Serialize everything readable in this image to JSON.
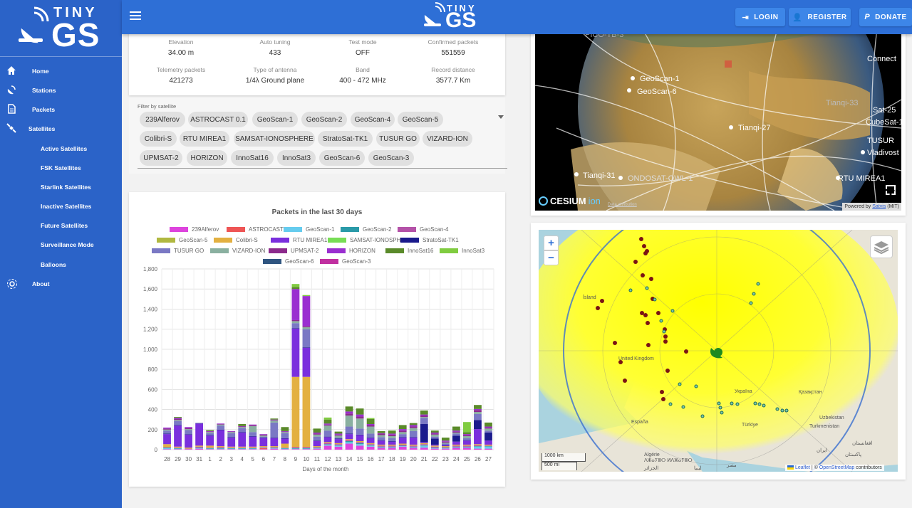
{
  "app": {
    "logo_small": "TINY",
    "logo_big": "GS"
  },
  "sidebar": {
    "items": [
      {
        "label": "Home",
        "type": "main"
      },
      {
        "label": "Stations",
        "type": "main"
      },
      {
        "label": "Packets",
        "type": "main"
      },
      {
        "label": "Satellites",
        "type": "sat"
      },
      {
        "label": "Active Satellites",
        "type": "sub"
      },
      {
        "label": "FSK Satellites",
        "type": "sub"
      },
      {
        "label": "Starlink Satellites",
        "type": "sub"
      },
      {
        "label": "Inactive Satellites",
        "type": "sub"
      },
      {
        "label": "Future Satellites",
        "type": "sub"
      },
      {
        "label": "Surveillance Mode",
        "type": "sub"
      },
      {
        "label": "Balloons",
        "type": "sub"
      },
      {
        "label": "About",
        "type": "main"
      }
    ]
  },
  "header": {
    "login": "LOGIN",
    "register": "REGISTER",
    "donate": "DONATE"
  },
  "stats": [
    {
      "key": "Elevation",
      "value": "34.00 m"
    },
    {
      "key": "Auto tuning",
      "value": "433"
    },
    {
      "key": "Test mode",
      "value": "OFF"
    },
    {
      "key": "Confirmed packets",
      "value": "551559"
    },
    {
      "key": "Telemetry packets",
      "value": "421273"
    },
    {
      "key": "Type of antenna",
      "value": "1/4λ Ground plane"
    },
    {
      "key": "Band",
      "value": "400 - 472 MHz"
    },
    {
      "key": "Record distance",
      "value": "3577.7 Km"
    }
  ],
  "filter": {
    "label": "Filter by satellite",
    "chips": [
      "239Alferov",
      "ASTROCAST 0.1",
      "GeoScan-1",
      "GeoScan-2",
      "GeoScan-4",
      "GeoScan-5",
      "Colibri-S",
      "RTU MIREA1",
      "SAMSAT-IONOSPHERE",
      "StratoSat-TK1",
      "TUSUR GO",
      "VIZARD-ION",
      "UPMSAT-2",
      "HORIZON",
      "InnoSat16",
      "InnoSat3",
      "GeoScan-6",
      "GeoScan-3"
    ]
  },
  "globe": {
    "labels": [
      "GeoScan-1",
      "GeoScan-6",
      "Tianqi-27",
      "Tianqi-31",
      "ONDOSAT-OWL-1",
      "TUSUR",
      "Vladivost",
      "RTU MIREA1",
      "Tianqi-33",
      "Sat-25",
      "CubeSat-1",
      "Connect",
      "PICO-TB-3"
    ],
    "logo": "CESIUM",
    "logo_ion": "ion",
    "data_attr": "Data attribution",
    "powered": "Powered by ",
    "satvis": "Satvis",
    "mit": " (MIT)"
  },
  "map": {
    "zoom_in": "+",
    "zoom_out": "−",
    "scale_km": "1000 km",
    "scale_mi": "500 mi",
    "leaflet": "Leaflet",
    "sep": " | © ",
    "osm": "OpenStreetMap",
    "contrib": " contributors",
    "places": [
      "United Kingdom",
      "España",
      "Algérie",
      "الجزائر",
      "ليبيا",
      "مصر",
      "Türkiye",
      "Қазақстан",
      "Turkmenistan",
      "Uzbekistan",
      "ایران",
      "پاکستان",
      "افغانستان",
      "Україна",
      "ⴷⵣⴰⵢⴻⵔ ⵍⴷⵣⴰⵢⴻⵔ",
      "Ísland"
    ]
  },
  "chart_data": {
    "type": "bar",
    "title": "Packets in the last 30 days",
    "xlabel": "Days of the month",
    "ylabel": "",
    "ylim": [
      0,
      1800
    ],
    "yticks": [
      0,
      200,
      400,
      600,
      800,
      1000,
      1200,
      1400,
      1600,
      1800
    ],
    "ytick_labels": [
      "0",
      "200",
      "400",
      "600",
      "800",
      "1,000",
      "1,200",
      "1,400",
      "1,600",
      "1,800"
    ],
    "stacked": true,
    "grid": true,
    "legend_position": "top",
    "categories": [
      "28",
      "29",
      "30",
      "31",
      "1",
      "2",
      "3",
      "4",
      "5",
      "6",
      "7",
      "8",
      "9",
      "10",
      "11",
      "12",
      "13",
      "14",
      "15",
      "16",
      "17",
      "18",
      "19",
      "20",
      "21",
      "22",
      "23",
      "24",
      "25",
      "26",
      "27"
    ],
    "series": [
      {
        "name": "239Alferov",
        "color": "#dd44dd",
        "values": [
          5,
          5,
          5,
          10,
          5,
          5,
          5,
          5,
          5,
          5,
          10,
          5,
          5,
          5,
          10,
          40,
          30,
          60,
          40,
          30,
          20,
          20,
          30,
          20,
          20,
          10,
          10,
          20,
          20,
          10,
          10
        ]
      },
      {
        "name": "ASTROCAST 0.1",
        "color": "#ee5555",
        "values": [
          0,
          0,
          0,
          0,
          0,
          0,
          0,
          0,
          0,
          10,
          0,
          0,
          0,
          0,
          0,
          0,
          0,
          0,
          0,
          0,
          0,
          0,
          0,
          0,
          0,
          0,
          0,
          0,
          0,
          0,
          0
        ]
      },
      {
        "name": "GeoScan-1",
        "color": "#66ccee",
        "values": [
          10,
          5,
          0,
          5,
          5,
          5,
          5,
          5,
          5,
          5,
          5,
          5,
          5,
          5,
          5,
          10,
          10,
          15,
          15,
          10,
          5,
          5,
          5,
          5,
          20,
          5,
          5,
          5,
          5,
          20,
          20
        ]
      },
      {
        "name": "GeoScan-2",
        "color": "#2a9aa8",
        "values": [
          5,
          5,
          0,
          5,
          5,
          5,
          5,
          5,
          5,
          0,
          5,
          5,
          5,
          5,
          5,
          5,
          5,
          10,
          10,
          5,
          5,
          5,
          5,
          5,
          5,
          5,
          5,
          5,
          5,
          5,
          5
        ]
      },
      {
        "name": "GeoScan-4",
        "color": "#b452a8",
        "values": [
          5,
          5,
          5,
          10,
          5,
          10,
          5,
          5,
          5,
          5,
          5,
          5,
          10,
          10,
          5,
          10,
          10,
          10,
          10,
          10,
          10,
          10,
          10,
          10,
          10,
          10,
          5,
          10,
          10,
          10,
          5
        ]
      },
      {
        "name": "GeoScan-5",
        "color": "#b0b840",
        "values": [
          0,
          0,
          0,
          0,
          0,
          0,
          0,
          0,
          0,
          0,
          0,
          0,
          0,
          0,
          0,
          0,
          0,
          0,
          0,
          0,
          0,
          0,
          0,
          0,
          0,
          0,
          0,
          0,
          0,
          0,
          0
        ]
      },
      {
        "name": "Colibri-S",
        "color": "#e3b041",
        "values": [
          30,
          10,
          10,
          10,
          20,
          10,
          10,
          10,
          10,
          10,
          10,
          40,
          700,
          700,
          10,
          10,
          10,
          10,
          10,
          10,
          10,
          10,
          10,
          10,
          10,
          10,
          10,
          10,
          10,
          10,
          10
        ]
      },
      {
        "name": "RTU MIREA1",
        "color": "#7a2fdd",
        "values": [
          100,
          210,
          130,
          220,
          100,
          160,
          90,
          140,
          100,
          80,
          80,
          50,
          480,
          290,
          50,
          50,
          40,
          50,
          60,
          50,
          40,
          30,
          60,
          70,
          10,
          10,
          10,
          30,
          40,
          150,
          40
        ]
      },
      {
        "name": "SAMSAT-IONOSPHERE",
        "color": "#77dd55",
        "values": [
          0,
          0,
          0,
          0,
          0,
          0,
          0,
          0,
          0,
          0,
          0,
          0,
          0,
          0,
          0,
          0,
          0,
          0,
          0,
          0,
          0,
          0,
          0,
          0,
          0,
          0,
          0,
          0,
          0,
          0,
          0
        ]
      },
      {
        "name": "StratoSat-TK1",
        "color": "#1a1a8c",
        "values": [
          5,
          5,
          5,
          5,
          5,
          5,
          5,
          5,
          5,
          5,
          5,
          5,
          5,
          5,
          5,
          5,
          5,
          5,
          5,
          5,
          5,
          5,
          5,
          5,
          180,
          60,
          5,
          60,
          5,
          90,
          80
        ]
      },
      {
        "name": "TUSUR GO",
        "color": "#7a78c4",
        "values": [
          30,
          40,
          40,
          0,
          20,
          40,
          40,
          40,
          40,
          10,
          150,
          50,
          50,
          180,
          40,
          60,
          10,
          70,
          60,
          40,
          30,
          30,
          30,
          60,
          60,
          20,
          10,
          20,
          20,
          60,
          20
        ]
      },
      {
        "name": "VIZARD-ION",
        "color": "#8ab0a0",
        "values": [
          10,
          10,
          10,
          0,
          10,
          10,
          10,
          10,
          60,
          10,
          20,
          10,
          20,
          20,
          20,
          50,
          20,
          110,
          100,
          70,
          20,
          20,
          20,
          30,
          10,
          20,
          10,
          10,
          20,
          20,
          20
        ]
      },
      {
        "name": "UPMSAT-2",
        "color": "#8c2a8c",
        "values": [
          10,
          10,
          10,
          0,
          5,
          5,
          5,
          5,
          10,
          10,
          5,
          5,
          10,
          10,
          10,
          10,
          10,
          20,
          20,
          15,
          15,
          15,
          15,
          15,
          15,
          10,
          10,
          10,
          10,
          20,
          10
        ]
      },
      {
        "name": "HORIZON",
        "color": "#9a2ed0",
        "values": [
          10,
          10,
          10,
          0,
          5,
          5,
          5,
          5,
          5,
          5,
          5,
          5,
          310,
          300,
          10,
          10,
          10,
          20,
          20,
          10,
          5,
          10,
          15,
          15,
          10,
          10,
          10,
          10,
          10,
          10,
          10
        ]
      },
      {
        "name": "InnoSat16",
        "color": "#5a8a2a",
        "values": [
          0,
          10,
          0,
          0,
          10,
          0,
          0,
          20,
          0,
          0,
          10,
          40,
          20,
          0,
          40,
          40,
          20,
          50,
          60,
          50,
          20,
          30,
          40,
          20,
          40,
          20,
          30,
          40,
          20,
          40,
          40
        ]
      },
      {
        "name": "InnoSat3",
        "color": "#80cc40",
        "values": [
          0,
          0,
          0,
          0,
          0,
          0,
          0,
          0,
          0,
          0,
          0,
          0,
          30,
          10,
          0,
          20,
          0,
          0,
          0,
          10,
          0,
          0,
          0,
          0,
          0,
          0,
          0,
          0,
          100,
          0,
          0
        ]
      },
      {
        "name": "GeoScan-6",
        "color": "#2f5580",
        "values": [
          0,
          0,
          0,
          0,
          0,
          0,
          0,
          0,
          0,
          0,
          0,
          0,
          0,
          0,
          0,
          0,
          0,
          0,
          0,
          0,
          0,
          0,
          0,
          0,
          0,
          0,
          0,
          0,
          0,
          0,
          0
        ]
      },
      {
        "name": "GeoScan-3",
        "color": "#c030a0",
        "values": [
          0,
          0,
          0,
          0,
          0,
          0,
          0,
          0,
          0,
          0,
          0,
          0,
          0,
          0,
          0,
          0,
          0,
          0,
          0,
          0,
          0,
          0,
          0,
          0,
          0,
          0,
          0,
          0,
          0,
          0,
          0
        ]
      }
    ]
  }
}
